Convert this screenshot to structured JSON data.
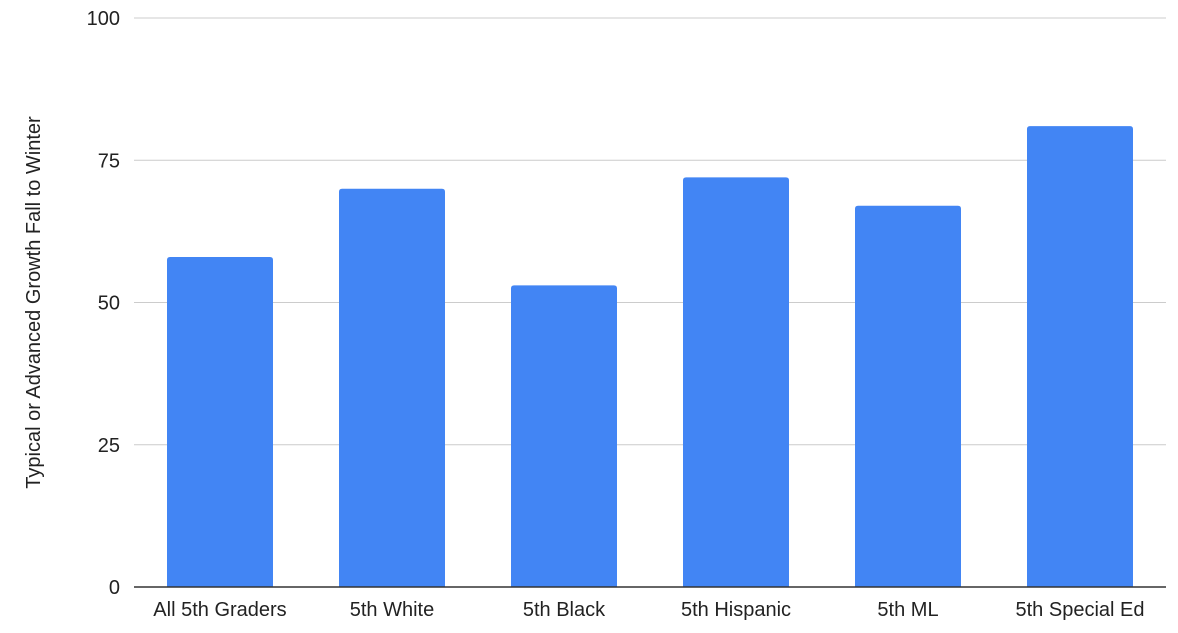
{
  "colors": {
    "bar": "#4285f4",
    "grid": "#cccccc",
    "axis": "#333333",
    "text": "#222222",
    "background": "#ffffff"
  },
  "chart_data": {
    "type": "bar",
    "title": "",
    "xlabel": "",
    "ylabel": "Typical or Advanced Growth Fall to Winter",
    "categories": [
      "All 5th Graders",
      "5th White",
      "5th Black",
      "5th Hispanic",
      "5th ML",
      "5th Special Ed"
    ],
    "values": [
      58,
      70,
      53,
      72,
      67,
      81
    ],
    "ylim": [
      0,
      100
    ],
    "yticks": [
      0,
      25,
      50,
      75,
      100
    ],
    "grid": true,
    "legend": "none"
  }
}
